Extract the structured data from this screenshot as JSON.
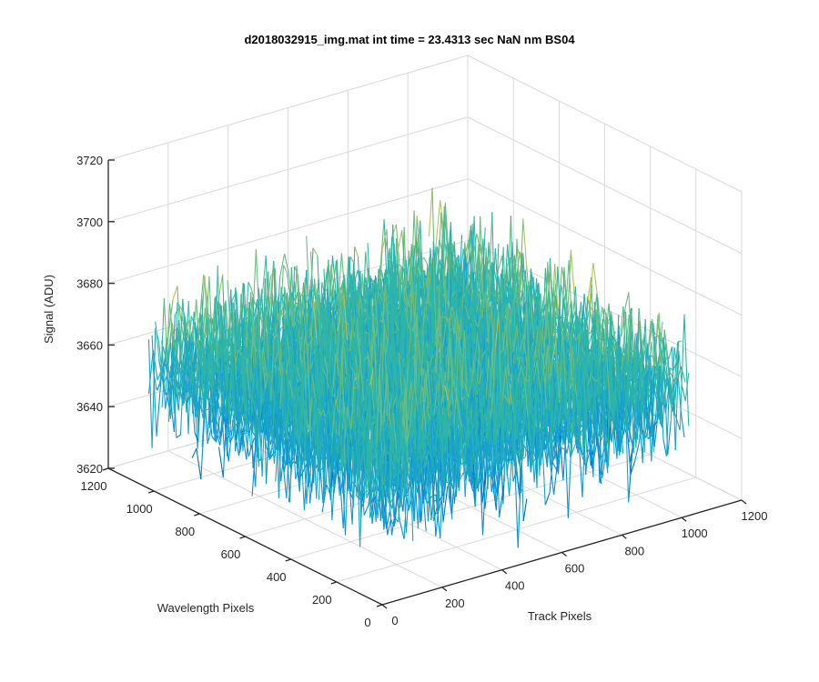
{
  "chart_data": {
    "type": "surface",
    "title": "d2018032915_img.mat int time = 23.4313 sec  NaN nm BS04",
    "xlabel": "Track Pixels",
    "ylabel": "Wavelength Pixels",
    "zlabel": "Signal (ADU)",
    "xlim": [
      0,
      1200
    ],
    "ylim": [
      0,
      1200
    ],
    "zlim": [
      3620,
      3720
    ],
    "x_ticks": [
      0,
      200,
      400,
      600,
      800,
      1000,
      1200
    ],
    "y_ticks": [
      0,
      200,
      400,
      600,
      800,
      1000,
      1200
    ],
    "z_ticks": [
      3620,
      3640,
      3660,
      3680,
      3700,
      3720
    ],
    "x_tick_labels": [
      "0",
      "200",
      "400",
      "600",
      "800",
      "1000",
      "1200"
    ],
    "y_tick_labels": [
      "0",
      "200",
      "400",
      "600",
      "800",
      "1000",
      "1200"
    ],
    "z_tick_labels": [
      "3620",
      "3640",
      "3660",
      "3680",
      "3700",
      "3720"
    ],
    "data_extent": {
      "x": [
        1,
        1024
      ],
      "y": [
        1,
        1024
      ]
    },
    "signal_mean": 3660,
    "signal_range": [
      3620,
      3712
    ],
    "grid": true,
    "colormap": [
      "#0072bd",
      "#0a8ed6",
      "#1aa3c8",
      "#2fb5a8",
      "#6cbd80",
      "#b8c15a",
      "#e0b93a"
    ]
  }
}
